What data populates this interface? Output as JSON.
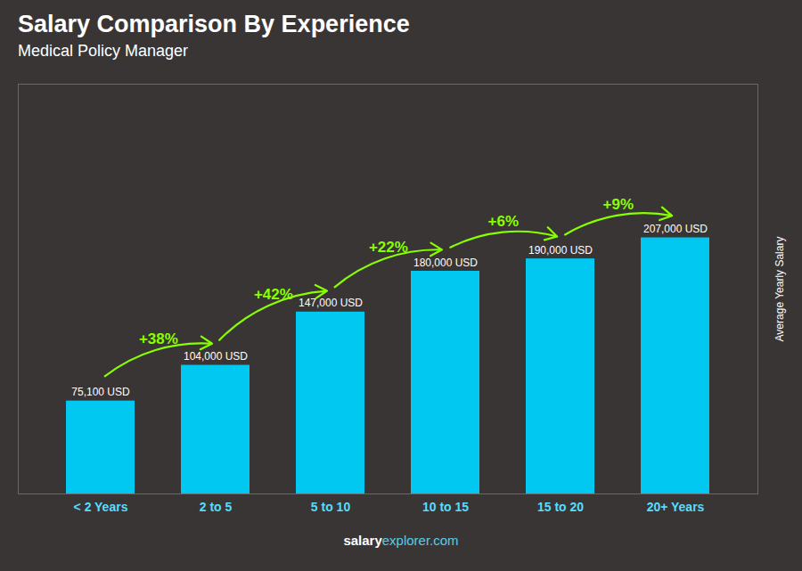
{
  "chart_data": {
    "type": "bar",
    "title": "Salary Comparison By Experience",
    "subtitle": "Medical Policy Manager",
    "ylabel": "Average Yearly Salary",
    "caption": "salaryexplorer.com",
    "categories": [
      "< 2 Years",
      "2 to 5",
      "5 to 10",
      "10 to 15",
      "15 to 20",
      "20+ Years"
    ],
    "values": [
      75100,
      104000,
      147000,
      180000,
      190000,
      207000
    ],
    "value_labels": [
      "75,100 USD",
      "104,000 USD",
      "147,000 USD",
      "180,000 USD",
      "190,000 USD",
      "207,000 USD"
    ],
    "data_labels": true,
    "color": "#00c8f0",
    "ylim": [
      0,
      331200
    ],
    "tick_labels": "x",
    "grid": false,
    "annotations": [
      {
        "text": "+38%",
        "from": "< 2 Years",
        "to": "2 to 5"
      },
      {
        "text": "+42%",
        "from": "2 to 5",
        "to": "5 to 10"
      },
      {
        "text": "+22%",
        "from": "5 to 10",
        "to": "10 to 15"
      },
      {
        "text": "+6%",
        "from": "10 to 15",
        "to": "15 to 20"
      },
      {
        "text": "+9%",
        "from": "15 to 20",
        "to": "20+ Years"
      }
    ]
  }
}
